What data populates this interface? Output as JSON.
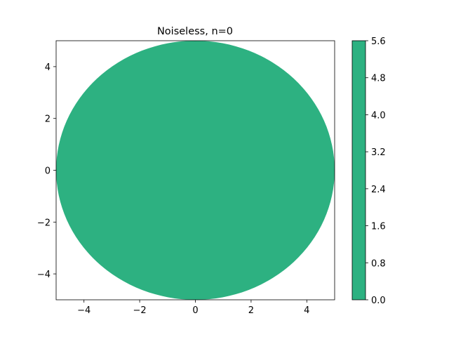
{
  "chart_data": {
    "type": "heatmap",
    "title": "Noiseless, n=0",
    "xlabel": "",
    "ylabel": "",
    "xlim": [
      -5,
      5
    ],
    "ylim": [
      -5,
      5
    ],
    "x_ticks": [
      "−4",
      "−2",
      "0",
      "2",
      "4"
    ],
    "x_tick_values": [
      -4,
      -2,
      0,
      2,
      4
    ],
    "y_ticks": [
      "−4",
      "−2",
      "0",
      "2",
      "4"
    ],
    "y_tick_values": [
      -4,
      -2,
      0,
      2,
      4
    ],
    "grid": false,
    "shape": "disk",
    "disk": {
      "center": [
        0,
        0
      ],
      "radius": 5,
      "value": 0.0
    },
    "fill_color": "#2db181",
    "colorbar": {
      "range": [
        0.0,
        5.6
      ],
      "ticks": [
        "0.0",
        "0.8",
        "1.6",
        "2.4",
        "3.2",
        "4.0",
        "4.8",
        "5.6"
      ],
      "tick_values": [
        0.0,
        0.8,
        1.6,
        2.4,
        3.2,
        4.0,
        4.8,
        5.6
      ],
      "color": "#2db181"
    }
  }
}
